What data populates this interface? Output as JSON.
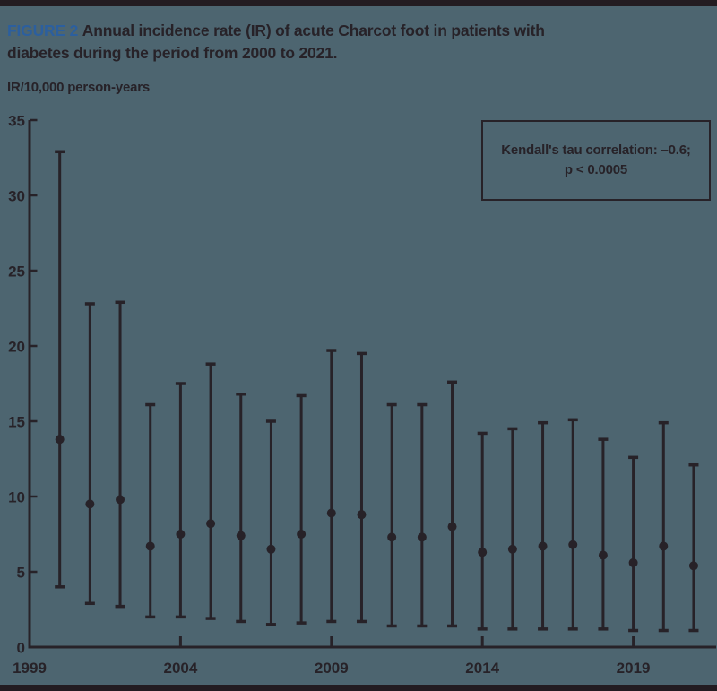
{
  "page": {
    "background_color": "#4d6570",
    "ink_color": "#272228",
    "accent_blue": "#2c5f9e",
    "border_bar_color": "#231c21"
  },
  "caption": {
    "label": "FIGURE 2",
    "line1": "Annual incidence rate (IR) of acute Charcot foot in patients with",
    "line2": "diabetes during the period from 2000 to 2021."
  },
  "annotation": {
    "line1": "Kendall's tau correlation: –0.6;",
    "line2": "p < 0.0005"
  },
  "chart_data": {
    "type": "scatter",
    "subtype": "point-estimates-with-95ci-error-bars",
    "title": "Annual incidence rate (IR) of acute Charcot foot in patients with diabetes during the period from 2000 to 2021.",
    "xlabel": "",
    "ylabel": "IR/10,000 person-years",
    "ylim": [
      0,
      35
    ],
    "xlim": [
      1999,
      2021.8
    ],
    "grid": false,
    "legend": "none",
    "annotation_text": "Kendall's tau correlation: –0.6; p < 0.0005",
    "y_ticks": [
      0,
      5,
      10,
      15,
      20,
      25,
      30,
      35
    ],
    "x_tick_labels": [
      {
        "label": "1999",
        "year": 1999,
        "has_tick": false
      },
      {
        "label": "2004",
        "year": 2004,
        "has_tick": true
      },
      {
        "label": "2009",
        "year": 2009,
        "has_tick": true
      },
      {
        "label": "2014",
        "year": 2014,
        "has_tick": true
      },
      {
        "label": "2019",
        "year": 2019,
        "has_tick": true
      }
    ],
    "points": [
      {
        "year": 2000,
        "ir": 13.8,
        "ci_low": 4.0,
        "ci_high": 32.9
      },
      {
        "year": 2001,
        "ir": 9.5,
        "ci_low": 2.9,
        "ci_high": 22.8
      },
      {
        "year": 2002,
        "ir": 9.8,
        "ci_low": 2.7,
        "ci_high": 22.9
      },
      {
        "year": 2003,
        "ir": 6.7,
        "ci_low": 2.0,
        "ci_high": 16.1
      },
      {
        "year": 2004,
        "ir": 7.5,
        "ci_low": 2.0,
        "ci_high": 17.5
      },
      {
        "year": 2005,
        "ir": 8.2,
        "ci_low": 1.9,
        "ci_high": 18.8
      },
      {
        "year": 2006,
        "ir": 7.4,
        "ci_low": 1.7,
        "ci_high": 16.8
      },
      {
        "year": 2007,
        "ir": 6.5,
        "ci_low": 1.5,
        "ci_high": 15.0
      },
      {
        "year": 2008,
        "ir": 7.5,
        "ci_low": 1.6,
        "ci_high": 16.7
      },
      {
        "year": 2009,
        "ir": 8.9,
        "ci_low": 1.7,
        "ci_high": 19.7
      },
      {
        "year": 2010,
        "ir": 8.8,
        "ci_low": 1.7,
        "ci_high": 19.5
      },
      {
        "year": 2011,
        "ir": 7.3,
        "ci_low": 1.4,
        "ci_high": 16.1
      },
      {
        "year": 2012,
        "ir": 7.3,
        "ci_low": 1.4,
        "ci_high": 16.1
      },
      {
        "year": 2013,
        "ir": 8.0,
        "ci_low": 1.4,
        "ci_high": 17.6
      },
      {
        "year": 2014,
        "ir": 6.3,
        "ci_low": 1.2,
        "ci_high": 14.2
      },
      {
        "year": 2015,
        "ir": 6.5,
        "ci_low": 1.2,
        "ci_high": 14.5
      },
      {
        "year": 2016,
        "ir": 6.7,
        "ci_low": 1.2,
        "ci_high": 14.9
      },
      {
        "year": 2017,
        "ir": 6.8,
        "ci_low": 1.2,
        "ci_high": 15.1
      },
      {
        "year": 2018,
        "ir": 6.1,
        "ci_low": 1.2,
        "ci_high": 13.8
      },
      {
        "year": 2019,
        "ir": 5.6,
        "ci_low": 1.1,
        "ci_high": 12.6
      },
      {
        "year": 2020,
        "ir": 6.7,
        "ci_low": 1.1,
        "ci_high": 14.9
      },
      {
        "year": 2021,
        "ir": 5.4,
        "ci_low": 1.1,
        "ci_high": 12.1
      }
    ]
  }
}
